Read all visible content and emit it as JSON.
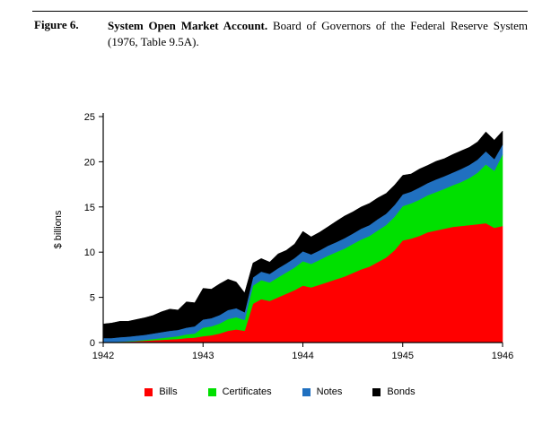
{
  "figure": {
    "label": "Figure 6.",
    "title_bold": "System Open Market Account.",
    "title_rest": "Board of Governors of the Federal Reserve System (1976, Table 9.5A)."
  },
  "chart_data": {
    "type": "area",
    "stacked": true,
    "title": "",
    "xlabel": "",
    "ylabel": "$ billions",
    "ylim": [
      0,
      25
    ],
    "yticks": [
      0,
      5,
      10,
      15,
      20,
      25
    ],
    "xlim": [
      1942,
      1946
    ],
    "xticks": [
      1942,
      1943,
      1944,
      1945,
      1946
    ],
    "grid": false,
    "legend_position": "bottom",
    "x": [
      1942.0,
      1942.083,
      1942.167,
      1942.25,
      1942.333,
      1942.417,
      1942.5,
      1942.583,
      1942.667,
      1942.75,
      1942.833,
      1942.917,
      1943.0,
      1943.083,
      1943.167,
      1943.25,
      1943.333,
      1943.417,
      1943.5,
      1943.583,
      1943.667,
      1943.75,
      1943.833,
      1943.917,
      1944.0,
      1944.083,
      1944.167,
      1944.25,
      1944.333,
      1944.417,
      1944.5,
      1944.583,
      1944.667,
      1944.75,
      1944.833,
      1944.917,
      1945.0,
      1945.083,
      1945.167,
      1945.25,
      1945.333,
      1945.417,
      1945.5,
      1945.583,
      1945.667,
      1945.75,
      1945.833,
      1945.917,
      1946.0
    ],
    "series": [
      {
        "name": "Bills",
        "color": "#ff0000",
        "values": [
          0.05,
          0.05,
          0.1,
          0.1,
          0.15,
          0.2,
          0.25,
          0.3,
          0.35,
          0.4,
          0.5,
          0.55,
          0.7,
          0.8,
          1.0,
          1.3,
          1.45,
          1.3,
          4.3,
          4.8,
          4.6,
          5.0,
          5.4,
          5.8,
          6.3,
          6.1,
          6.4,
          6.7,
          7.0,
          7.3,
          7.7,
          8.1,
          8.4,
          8.9,
          9.4,
          10.2,
          11.3,
          11.5,
          11.8,
          12.2,
          12.4,
          12.6,
          12.8,
          12.9,
          13.0,
          13.1,
          13.2,
          12.7,
          12.9
        ]
      },
      {
        "name": "Certificates",
        "color": "#00e000",
        "values": [
          0.0,
          0.0,
          0.0,
          0.05,
          0.05,
          0.1,
          0.15,
          0.2,
          0.25,
          0.3,
          0.4,
          0.45,
          0.95,
          1.0,
          1.1,
          1.3,
          1.35,
          1.2,
          2.0,
          2.1,
          2.05,
          2.2,
          2.35,
          2.5,
          2.7,
          2.6,
          2.75,
          2.9,
          3.0,
          3.1,
          3.2,
          3.3,
          3.4,
          3.5,
          3.6,
          3.7,
          3.8,
          3.9,
          4.0,
          4.1,
          4.25,
          4.4,
          4.6,
          4.85,
          5.2,
          5.7,
          6.5,
          6.3,
          7.9
        ]
      },
      {
        "name": "Notes",
        "color": "#2070c0",
        "values": [
          0.45,
          0.45,
          0.5,
          0.5,
          0.55,
          0.55,
          0.6,
          0.65,
          0.7,
          0.7,
          0.75,
          0.8,
          0.9,
          0.9,
          0.95,
          1.0,
          1.0,
          0.85,
          0.9,
          0.95,
          0.95,
          1.0,
          1.0,
          1.05,
          1.1,
          1.05,
          1.05,
          1.1,
          1.1,
          1.15,
          1.15,
          1.2,
          1.2,
          1.25,
          1.25,
          1.3,
          1.3,
          1.3,
          1.35,
          1.35,
          1.4,
          1.4,
          1.4,
          1.45,
          1.45,
          1.45,
          1.45,
          1.3,
          1.1
        ]
      },
      {
        "name": "Bonds",
        "color": "#000000",
        "values": [
          1.55,
          1.65,
          1.75,
          1.7,
          1.8,
          1.9,
          2.0,
          2.25,
          2.4,
          2.2,
          2.85,
          2.6,
          3.45,
          3.2,
          3.45,
          3.4,
          2.9,
          2.15,
          1.6,
          1.45,
          1.3,
          1.6,
          1.45,
          1.55,
          2.2,
          1.95,
          2.0,
          2.1,
          2.3,
          2.45,
          2.4,
          2.4,
          2.4,
          2.35,
          2.25,
          2.2,
          2.1,
          1.95,
          2.05,
          1.95,
          2.0,
          1.95,
          2.0,
          2.0,
          1.95,
          1.95,
          2.15,
          2.1,
          1.5
        ]
      }
    ]
  }
}
